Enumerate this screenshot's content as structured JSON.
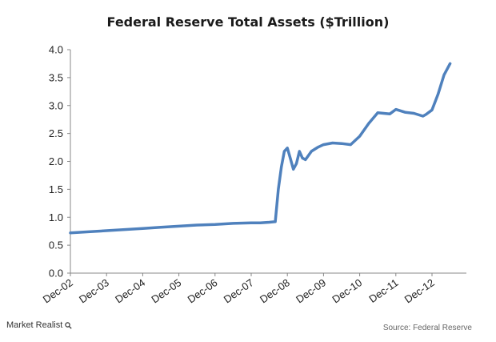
{
  "chart_data": {
    "type": "line",
    "title": "Federal Reserve Total Assets ($Trillion)",
    "xlabel": "",
    "ylabel": "",
    "ylim": [
      0.0,
      4.0
    ],
    "yticks": [
      "0.0",
      "0.5",
      "1.0",
      "1.5",
      "2.0",
      "2.5",
      "3.0",
      "3.5",
      "4.0"
    ],
    "xticks": [
      "Dec-02",
      "Dec-03",
      "Dec-04",
      "Dec-05",
      "Dec-06",
      "Dec-07",
      "Dec-08",
      "Dec-09",
      "Dec-10",
      "Dec-11",
      "Dec-12"
    ],
    "grid": false,
    "line_color": "#4f81bd",
    "series": [
      {
        "x": [
          "2002-12",
          "2003-06",
          "2003-12",
          "2004-06",
          "2004-12",
          "2005-06",
          "2005-12",
          "2006-06",
          "2006-12",
          "2007-06",
          "2007-12",
          "2008-03",
          "2008-06",
          "2008-08",
          "2008-09",
          "2008-10",
          "2008-11",
          "2008-12",
          "2009-01",
          "2009-02",
          "2009-03",
          "2009-04",
          "2009-05",
          "2009-06",
          "2009-08",
          "2009-10",
          "2009-12",
          "2010-03",
          "2010-06",
          "2010-09",
          "2010-12",
          "2011-03",
          "2011-06",
          "2011-08",
          "2011-10",
          "2011-12",
          "2012-03",
          "2012-06",
          "2012-09",
          "2012-10",
          "2012-12",
          "2013-02",
          "2013-04",
          "2013-06"
        ],
        "values": [
          0.72,
          0.74,
          0.76,
          0.78,
          0.8,
          0.82,
          0.84,
          0.86,
          0.87,
          0.89,
          0.9,
          0.9,
          0.91,
          0.92,
          1.5,
          1.9,
          2.18,
          2.24,
          2.05,
          1.86,
          1.96,
          2.18,
          2.06,
          2.03,
          2.18,
          2.25,
          2.3,
          2.33,
          2.32,
          2.3,
          2.45,
          2.68,
          2.87,
          2.86,
          2.85,
          2.93,
          2.88,
          2.86,
          2.81,
          2.84,
          2.92,
          3.2,
          3.55,
          3.75
        ]
      }
    ]
  },
  "footer": {
    "brand": "Market Realist",
    "source": "Source: Federal Reserve"
  }
}
